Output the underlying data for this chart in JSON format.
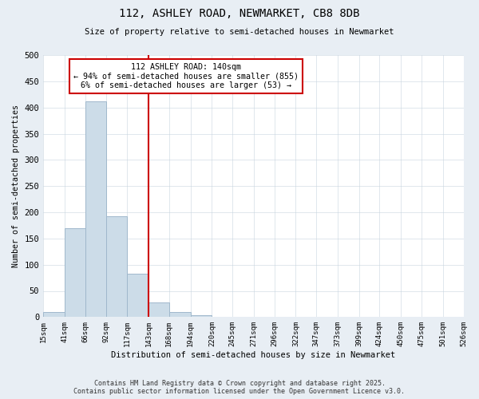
{
  "title": "112, ASHLEY ROAD, NEWMARKET, CB8 8DB",
  "subtitle": "Size of property relative to semi-detached houses in Newmarket",
  "xlabel": "Distribution of semi-detached houses by size in Newmarket",
  "ylabel": "Number of semi-detached properties",
  "bar_edges": [
    15,
    41,
    66,
    92,
    117,
    143,
    168,
    194,
    220,
    245,
    271,
    296,
    322,
    347,
    373,
    399,
    424,
    450,
    475,
    501,
    526
  ],
  "bar_heights": [
    10,
    170,
    412,
    193,
    83,
    28,
    10,
    3,
    1,
    0,
    0,
    0,
    0,
    0,
    0,
    0,
    0,
    0,
    0,
    0
  ],
  "bar_color": "#ccdce8",
  "bar_edge_color": "#a0b8cc",
  "vline_x": 143,
  "vline_color": "#cc0000",
  "annotation_title": "112 ASHLEY ROAD: 140sqm",
  "annotation_line1": "← 94% of semi-detached houses are smaller (855)",
  "annotation_line2": "6% of semi-detached houses are larger (53) →",
  "annotation_box_color": "#cc0000",
  "ylim": [
    0,
    500
  ],
  "yticks": [
    0,
    50,
    100,
    150,
    200,
    250,
    300,
    350,
    400,
    450,
    500
  ],
  "tick_labels": [
    "15sqm",
    "41sqm",
    "66sqm",
    "92sqm",
    "117sqm",
    "143sqm",
    "168sqm",
    "194sqm",
    "220sqm",
    "245sqm",
    "271sqm",
    "296sqm",
    "322sqm",
    "347sqm",
    "373sqm",
    "399sqm",
    "424sqm",
    "450sqm",
    "475sqm",
    "501sqm",
    "526sqm"
  ],
  "footer_line1": "Contains HM Land Registry data © Crown copyright and database right 2025.",
  "footer_line2": "Contains public sector information licensed under the Open Government Licence v3.0.",
  "bg_color": "#e8eef4",
  "plot_bg_color": "#ffffff"
}
